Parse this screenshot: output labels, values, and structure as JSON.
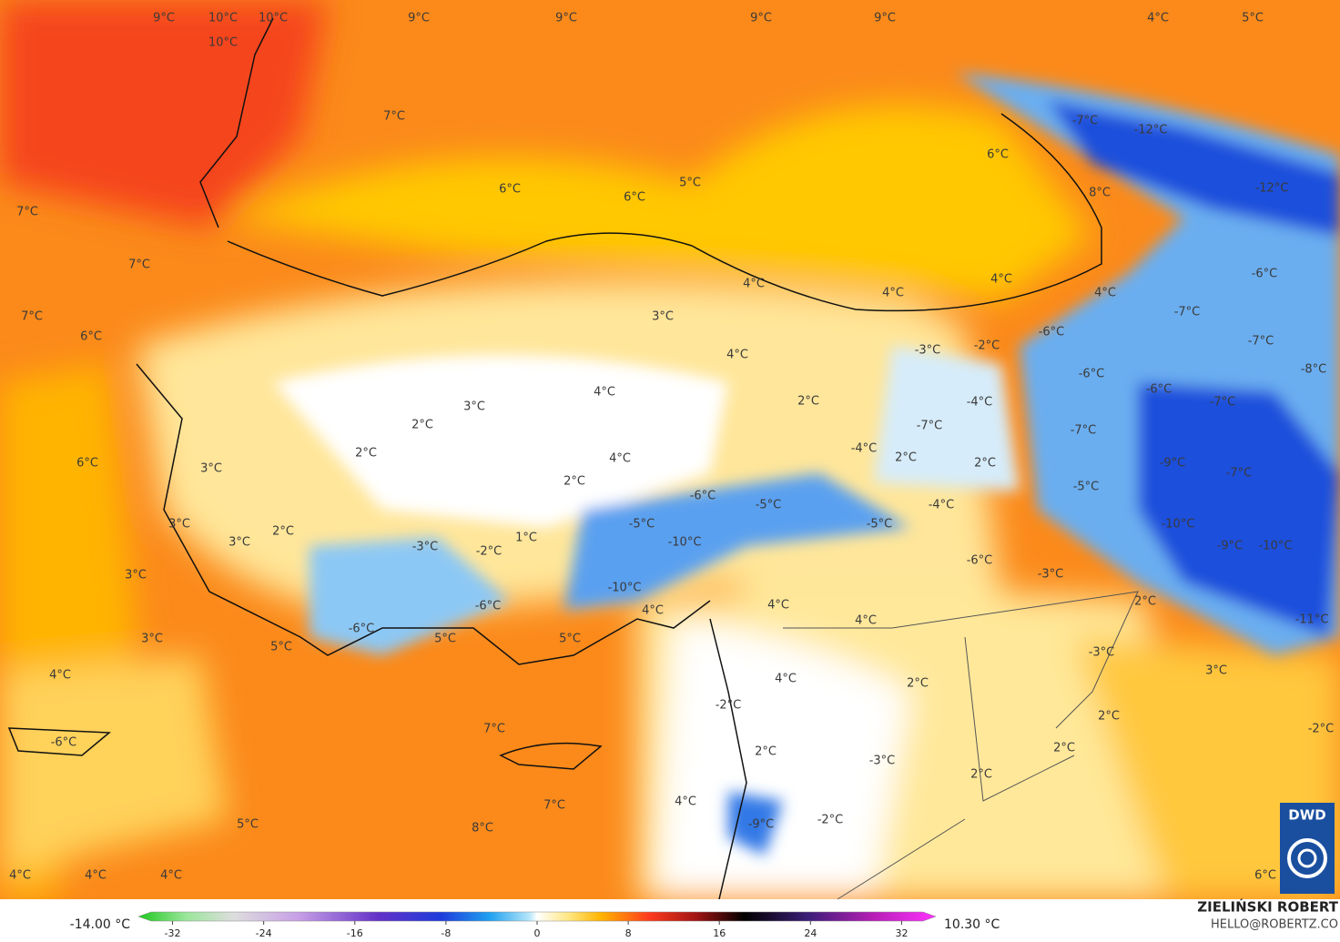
{
  "map": {
    "labels": [
      "9°C",
      "10°C",
      "10°C",
      "10°C",
      "9°C",
      "9°C",
      "9°C",
      "9°C",
      "4°C",
      "5°C",
      "7°C",
      "-7°C",
      "-12°C",
      "6°C",
      "6°C",
      "6°C",
      "5°C",
      "8°C",
      "-12°C",
      "7°C",
      "7°C",
      "-6°C",
      "4°C",
      "4°C",
      "4°C",
      "4°C",
      "7°C",
      "-7°C",
      "3°C",
      "6°C",
      "-6°C",
      "-3°C",
      "-2°C",
      "-7°C",
      "4°C",
      "-8°C",
      "-6°C",
      "4°C",
      "-6°C",
      "-7°C",
      "2°C",
      "-4°C",
      "3°C",
      "2°C",
      "-7°C",
      "-7°C",
      "2°C",
      "-4°C",
      "4°C",
      "2°C",
      "2°C",
      "-9°C",
      "6°C",
      "3°C",
      "-7°C",
      "2°C",
      "-5°C",
      "-6°C",
      "-5°C",
      "-4°C",
      "3°C",
      "-5°C",
      "-5°C",
      "-10°C",
      "2°C",
      "1°C",
      "-10°C",
      "3°C",
      "-3°C",
      "-2°C",
      "-9°C",
      "-10°C",
      "3°C",
      "-6°C",
      "-3°C",
      "-10°C",
      "2°C",
      "4°C",
      "-6°C",
      "4°C",
      "4°C",
      "-11°C",
      "-6°C",
      "3°C",
      "5°C",
      "5°C",
      "5°C",
      "-3°C",
      "4°C",
      "4°C",
      "2°C",
      "3°C",
      "-2°C",
      "2°C",
      "7°C",
      "-2°C",
      "-6°C",
      "2°C",
      "-3°C",
      "2°C",
      "2°C",
      "7°C",
      "4°C",
      "-2°C",
      "-9°C",
      "5°C",
      "8°C",
      "4°C",
      "4°C",
      "4°C",
      "6°C"
    ],
    "colorbar": {
      "min_label": "-14.00 °C",
      "max_label": "10.30 °C",
      "lim": [
        -35,
        35
      ],
      "ticks": [
        -32,
        -24,
        -16,
        -8,
        0,
        8,
        16,
        24,
        32
      ]
    },
    "credits": {
      "author": "ZIELIŃSKI ROBERT",
      "email": "HELLO@ROBERTZ.CO",
      "logo": "DWD"
    }
  }
}
